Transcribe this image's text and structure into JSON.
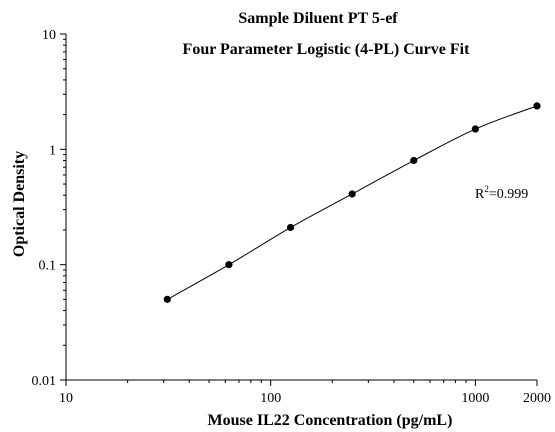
{
  "chart_data": {
    "type": "scatter",
    "title": "Sample Diluent PT 5-ef",
    "subtitle": "Four Parameter Logistic (4-PL) Curve Fit",
    "xlabel": "Mouse IL22 Concentration (pg/mL)",
    "ylabel": "Optical Density",
    "x_scale": "log",
    "y_scale": "log",
    "xlim": [
      10,
      2000
    ],
    "ylim": [
      0.01,
      10
    ],
    "x_ticks": [
      10,
      100,
      1000,
      2000
    ],
    "x_tick_labels": [
      "10",
      "100",
      "1000",
      "2000"
    ],
    "y_ticks": [
      0.01,
      0.1,
      1,
      10
    ],
    "y_tick_labels": [
      "0.01",
      "0.1",
      "1",
      "10"
    ],
    "grid": false,
    "x": [
      31.25,
      62.5,
      125,
      250,
      500,
      1000,
      2000
    ],
    "y": [
      0.05,
      0.1,
      0.21,
      0.41,
      0.8,
      1.5,
      2.38
    ],
    "fit": "4-PL",
    "annotation": {
      "r2_prefix": "R",
      "r2_sup": "2",
      "r2_value": "=0.999"
    },
    "colors": {
      "points": "#000000",
      "curve": "#000000",
      "axes": "#000000"
    }
  }
}
